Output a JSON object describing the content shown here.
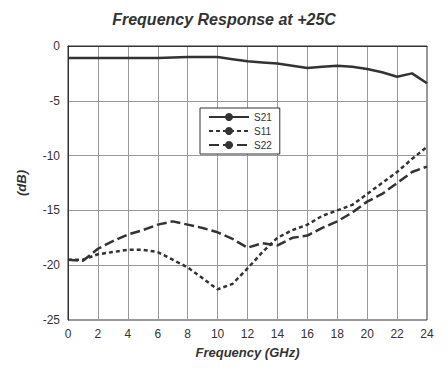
{
  "chart_data": {
    "type": "line",
    "title": "Frequency Response at +25C",
    "x_label": "Frequency (GHz)",
    "y_label": "(dB)",
    "x": [
      0,
      1,
      2,
      3,
      4,
      5,
      6,
      7,
      8,
      9,
      10,
      11,
      12,
      13,
      14,
      15,
      16,
      17,
      18,
      19,
      20,
      21,
      22,
      23,
      24
    ],
    "series": [
      {
        "name": "S21",
        "color": "#333333",
        "line_style": "solid",
        "values": [
          -1.1,
          -1.1,
          -1.1,
          -1.1,
          -1.1,
          -1.1,
          -1.1,
          -1.05,
          -1.0,
          -1.0,
          -1.0,
          -1.2,
          -1.4,
          -1.5,
          -1.6,
          -1.8,
          -2.0,
          -1.9,
          -1.8,
          -1.9,
          -2.1,
          -2.4,
          -2.8,
          -2.5,
          -3.4
        ]
      },
      {
        "name": "S11",
        "color": "#333333",
        "line_style": "dash",
        "values": [
          -19.5,
          -19.5,
          -19.0,
          -18.8,
          -18.6,
          -18.6,
          -18.8,
          -19.5,
          -20.2,
          -21.2,
          -22.2,
          -21.7,
          -20.3,
          -18.8,
          -17.5,
          -16.8,
          -16.3,
          -15.5,
          -15.0,
          -14.5,
          -13.5,
          -12.5,
          -11.5,
          -10.3,
          -9.2
        ]
      },
      {
        "name": "S22",
        "color": "#333333",
        "line_style": "longdash",
        "values": [
          -19.5,
          -19.6,
          -18.5,
          -17.8,
          -17.2,
          -16.8,
          -16.3,
          -16.0,
          -16.3,
          -16.6,
          -17.0,
          -17.6,
          -18.4,
          -18.0,
          -18.2,
          -17.5,
          -17.3,
          -16.6,
          -16.0,
          -15.2,
          -14.2,
          -13.5,
          -12.5,
          -11.5,
          -11.0
        ]
      }
    ],
    "xlim": [
      0,
      24
    ],
    "xticks": [
      0,
      2,
      4,
      6,
      8,
      10,
      12,
      14,
      16,
      18,
      20,
      22,
      24
    ],
    "ylim": [
      -25,
      0
    ],
    "yticks": [
      -25,
      -20,
      -15,
      -10,
      -5,
      0
    ],
    "grid": true,
    "legend": "center"
  }
}
